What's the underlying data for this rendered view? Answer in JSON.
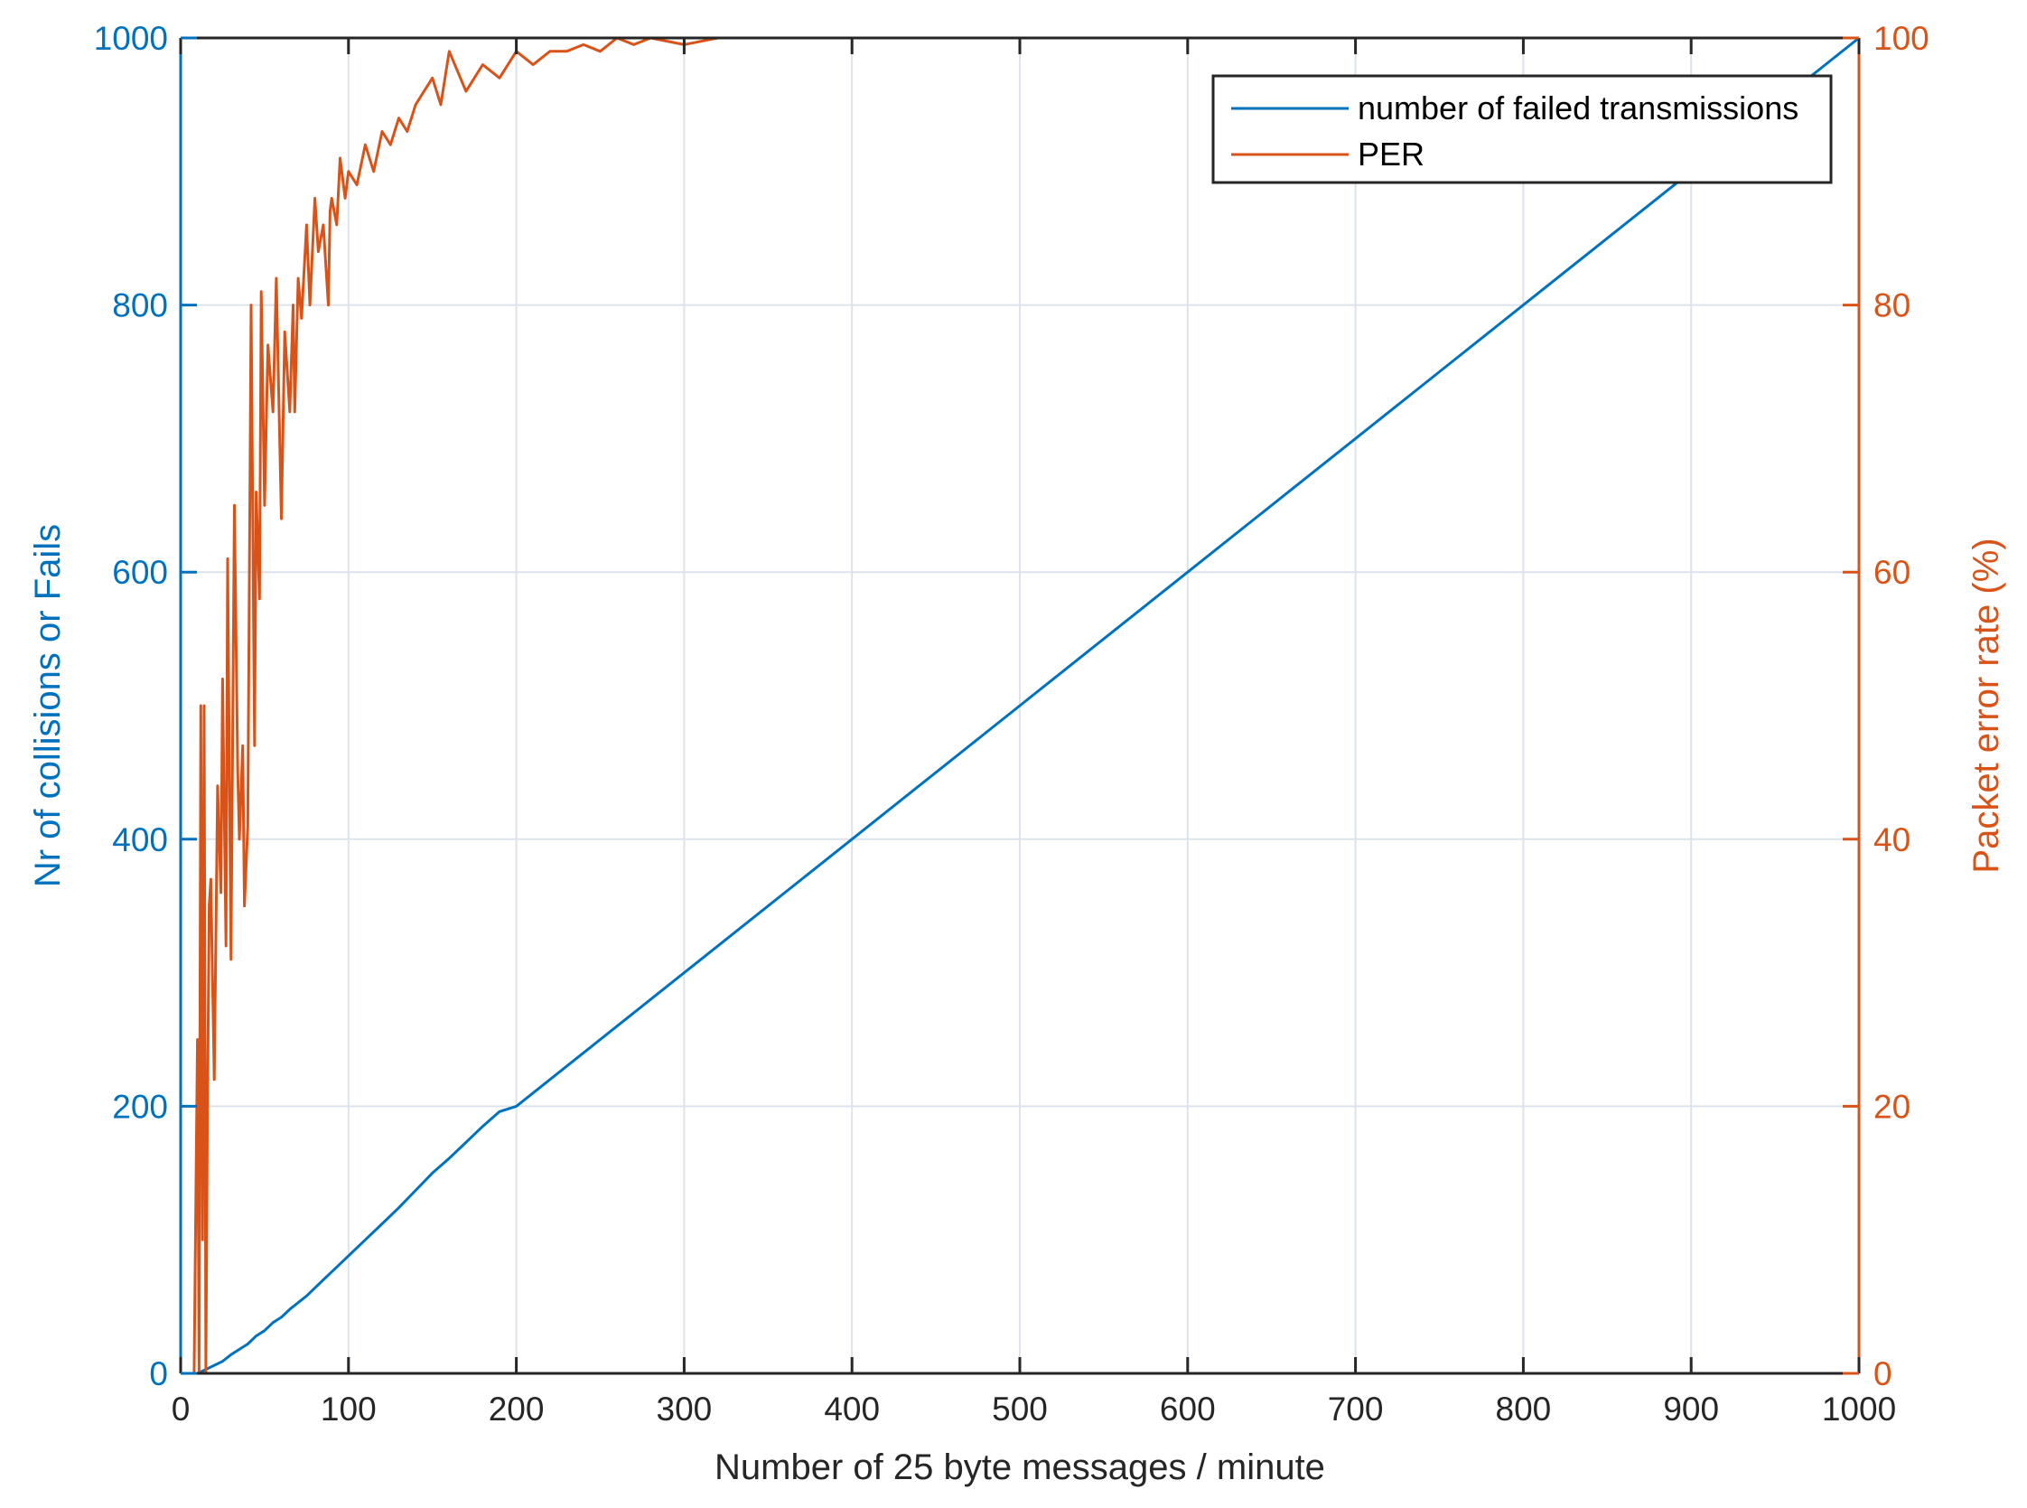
{
  "colors": {
    "left_axis": "#0072BD",
    "right_axis": "#D95319",
    "grid": "#DCE3EA",
    "axis_x": "#262626"
  },
  "chart_data": {
    "type": "line",
    "title": "",
    "xlabel": "Number of 25 byte  messages / minute",
    "ylabel_left": "Nr of collisions or Fails",
    "ylabel_right": "Packet error rate (%)",
    "xlim": [
      0,
      1000
    ],
    "ylim_left": [
      0,
      1000
    ],
    "ylim_right": [
      0,
      100
    ],
    "x_ticks": [
      0,
      100,
      200,
      300,
      400,
      500,
      600,
      700,
      800,
      900,
      1000
    ],
    "y_left_ticks": [
      0,
      200,
      400,
      600,
      800,
      1000
    ],
    "y_right_ticks": [
      0,
      20,
      40,
      60,
      80,
      100
    ],
    "grid": true,
    "legend_position": "top-right",
    "series": [
      {
        "name": "number of failed transmissions",
        "axis": "left",
        "color": "#0072BD",
        "x": [
          10,
          15,
          20,
          25,
          30,
          35,
          40,
          45,
          50,
          55,
          60,
          65,
          70,
          75,
          80,
          85,
          90,
          95,
          100,
          110,
          120,
          130,
          140,
          150,
          160,
          170,
          180,
          190,
          200,
          220,
          240,
          260,
          280,
          300,
          350,
          400,
          450,
          500,
          550,
          600,
          650,
          700,
          750,
          800,
          850,
          900,
          950,
          1000
        ],
        "y": [
          0,
          3,
          6,
          9,
          14,
          18,
          22,
          28,
          32,
          38,
          42,
          48,
          53,
          58,
          64,
          70,
          76,
          82,
          88,
          100,
          112,
          124,
          137,
          150,
          161,
          173,
          185,
          196,
          200,
          220,
          240,
          260,
          280,
          300,
          350,
          400,
          450,
          500,
          550,
          600,
          650,
          700,
          750,
          800,
          850,
          900,
          950,
          1000
        ]
      },
      {
        "name": "PER",
        "axis": "right",
        "color": "#D95319",
        "x": [
          8,
          10,
          11,
          12,
          13,
          14,
          15,
          16,
          17,
          18,
          20,
          22,
          24,
          25,
          27,
          28,
          30,
          32,
          34,
          35,
          37,
          38,
          40,
          42,
          44,
          45,
          47,
          48,
          50,
          52,
          55,
          57,
          60,
          62,
          65,
          67,
          68,
          70,
          72,
          75,
          77,
          80,
          82,
          85,
          88,
          89,
          90,
          93,
          95,
          98,
          100,
          105,
          110,
          115,
          120,
          125,
          130,
          135,
          140,
          145,
          150,
          155,
          160,
          170,
          180,
          190,
          200,
          210,
          220,
          230,
          240,
          250,
          260,
          270,
          280,
          300,
          320,
          340,
          360,
          380,
          400,
          450,
          500,
          600,
          700,
          800,
          900,
          1000
        ],
        "y": [
          0,
          25,
          0,
          50,
          10,
          50,
          0,
          20,
          35,
          37,
          22,
          44,
          36,
          52,
          32,
          61,
          31,
          65,
          45,
          40,
          47,
          35,
          41,
          80,
          47,
          66,
          58,
          81,
          65,
          77,
          72,
          82,
          64,
          78,
          72,
          80,
          72,
          82,
          79,
          86,
          80,
          88,
          84,
          86,
          80,
          87,
          88,
          86,
          91,
          88,
          90,
          89,
          92,
          90,
          93,
          92,
          94,
          93,
          95,
          96,
          97,
          95,
          99,
          96,
          98,
          97,
          99,
          98,
          99,
          99,
          99.5,
          99,
          100,
          99.5,
          100,
          99.5,
          100,
          100,
          100,
          100,
          100,
          100,
          100,
          100,
          100,
          100,
          100,
          100
        ]
      }
    ]
  }
}
